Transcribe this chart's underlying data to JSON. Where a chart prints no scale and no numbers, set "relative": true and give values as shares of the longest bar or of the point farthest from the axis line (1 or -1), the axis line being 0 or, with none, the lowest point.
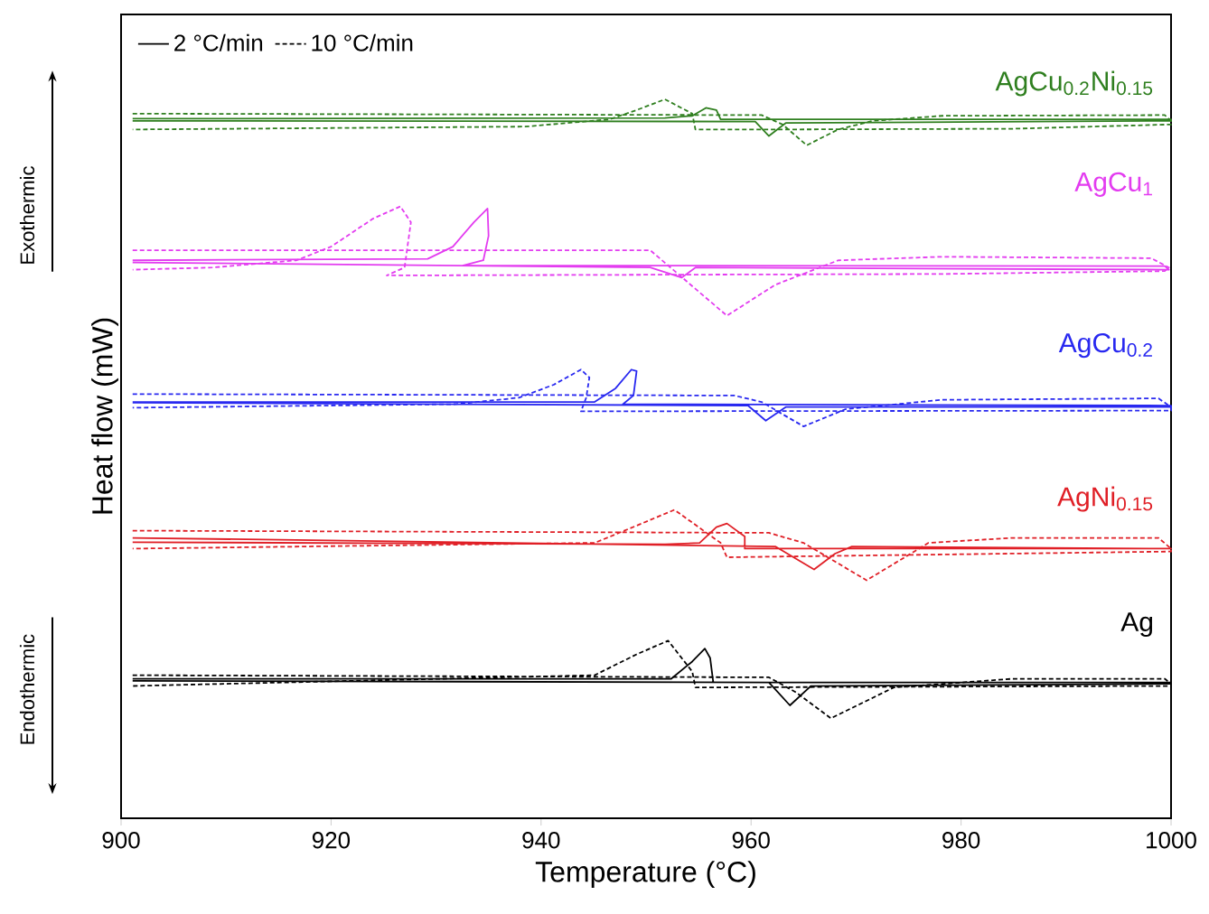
{
  "chart_data": {
    "type": "line",
    "relative": true,
    "xlabel": "Temperature (°C)",
    "ylabel": "Heat flow (mW)",
    "xlim": [
      900,
      1000
    ],
    "xticks": [
      900,
      920,
      940,
      960,
      980,
      1000
    ],
    "legend": "top left",
    "series": [
      {
        "name": "2 °C/min",
        "color": "#000000",
        "line_style": "solid",
        "x": [
          901.1,
          961.7,
          963.7,
          965.7,
          1000,
          1000,
          956.4,
          956.1,
          955.6,
          954.4,
          952.4,
          901.1
        ],
        "values": [
          0.191,
          0.189,
          0.157,
          0.184,
          0.187,
          0.189,
          0.189,
          0.223,
          0.236,
          0.218,
          0.194,
          0.194
        ]
      },
      {
        "name": "10 °C/min",
        "color": "#000000",
        "line_style": "dashed",
        "x": [
          901.1,
          961.7,
          964.3,
          967.6,
          973.6,
          984.9,
          999.4,
          1000,
          1000,
          954.7,
          954.4,
          952.1,
          949.1,
          945.1,
          901.1
        ],
        "values": [
          0.199,
          0.196,
          0.175,
          0.139,
          0.182,
          0.194,
          0.194,
          0.187,
          0.184,
          0.182,
          0.204,
          0.247,
          0.228,
          0.199,
          0.184
        ]
      },
      {
        "color": "#e01f26",
        "line_style": "solid",
        "x": [
          901.1,
          962.3,
          966.0,
          968.0,
          969.6,
          1000,
          1000,
          959.4,
          959.4,
          957.7,
          956.7,
          955.1,
          951.8,
          901.1
        ],
        "values": [
          0.39,
          0.378,
          0.346,
          0.368,
          0.378,
          0.375,
          0.375,
          0.375,
          0.392,
          0.41,
          0.405,
          0.383,
          0.381,
          0.384
        ]
      },
      {
        "color": "#e01f26",
        "line_style": "dashed",
        "x": [
          901.1,
          961.7,
          965.0,
          971.0,
          976.9,
          984.9,
          998.8,
          1000,
          1000,
          957.7,
          957.1,
          952.7,
          949.1,
          945.1,
          901.1
        ],
        "values": [
          0.4,
          0.397,
          0.383,
          0.331,
          0.383,
          0.39,
          0.39,
          0.375,
          0.371,
          0.363,
          0.383,
          0.429,
          0.407,
          0.383,
          0.375
        ]
      },
      {
        "color": "#2828f0",
        "line_style": "solid",
        "x": [
          901.1,
          959.7,
          961.4,
          963.3,
          1000,
          1000,
          947.8,
          948.8,
          949.1,
          948.6,
          947.1,
          945.1,
          901.1
        ],
        "values": [
          0.578,
          0.574,
          0.553,
          0.572,
          0.572,
          0.574,
          0.576,
          0.588,
          0.622,
          0.624,
          0.598,
          0.579,
          0.579
        ]
      },
      {
        "color": "#2828f0",
        "line_style": "dashed",
        "x": [
          901.1,
          958.4,
          961.0,
          965.0,
          969.0,
          978.2,
          998.8,
          1000,
          1000,
          943.8,
          944.3,
          944.6,
          943.8,
          941.2,
          937.9,
          931.9,
          901.1
        ],
        "values": [
          0.59,
          0.588,
          0.579,
          0.545,
          0.569,
          0.582,
          0.584,
          0.572,
          0.567,
          0.566,
          0.585,
          0.613,
          0.624,
          0.603,
          0.585,
          0.576,
          0.571
        ]
      },
      {
        "color": "#e33cf0",
        "line_style": "solid",
        "x": [
          901.1,
          950.4,
          953.4,
          954.7,
          999.8,
          999.4,
          932.6,
          934.5,
          935.0,
          934.9,
          933.6,
          931.6,
          929.2,
          901.1
        ],
        "values": [
          0.773,
          0.766,
          0.752,
          0.766,
          0.763,
          0.768,
          0.769,
          0.776,
          0.81,
          0.848,
          0.829,
          0.795,
          0.778,
          0.776
        ]
      },
      {
        "color": "#e33cf0",
        "line_style": "dashed",
        "x": [
          901.1,
          950.4,
          957.7,
          962.3,
          968.3,
          978.2,
          998.1,
          999.8,
          999.4,
          978.2,
          925.3,
          927.0,
          927.6,
          926.6,
          924.0,
          920.0,
          916.7,
          908.7,
          901.1
        ],
        "values": [
          0.79,
          0.79,
          0.699,
          0.742,
          0.776,
          0.781,
          0.779,
          0.766,
          0.761,
          0.757,
          0.755,
          0.766,
          0.829,
          0.851,
          0.834,
          0.795,
          0.776,
          0.766,
          0.763
        ]
      },
      {
        "color": "#2f7f1f",
        "line_style": "solid",
        "x": [
          901.1,
          960.4,
          961.7,
          963.3,
          1000,
          1000,
          957.1,
          956.7,
          955.7,
          954.4,
          951.8,
          901.1
        ],
        "values": [
          0.97,
          0.969,
          0.949,
          0.967,
          0.97,
          0.972,
          0.972,
          0.985,
          0.988,
          0.977,
          0.974,
          0.973
        ]
      },
      {
        "color": "#2f7f1f",
        "line_style": "dashed",
        "x": [
          901.1,
          961.0,
          963.0,
          965.3,
          968.3,
          971.6,
          978.2,
          999.4,
          1000,
          1000,
          984.9,
          962.3,
          954.7,
          954.4,
          951.8,
          949.1,
          946.5,
          938.5,
          901.1
        ],
        "values": [
          0.98,
          0.978,
          0.965,
          0.936,
          0.958,
          0.97,
          0.977,
          0.978,
          0.97,
          0.965,
          0.959,
          0.958,
          0.958,
          0.98,
          1.0,
          0.985,
          0.972,
          0.962,
          0.958
        ]
      }
    ],
    "annotations": [
      "Ag",
      "AgNi$_{0.15}$",
      "AgCu$_{0.2}$",
      "AgCu$_{1}$",
      "AgCu$_{0.2}$Ni$_{0.15}$",
      "Exothermic",
      "Endothermic"
    ]
  }
}
